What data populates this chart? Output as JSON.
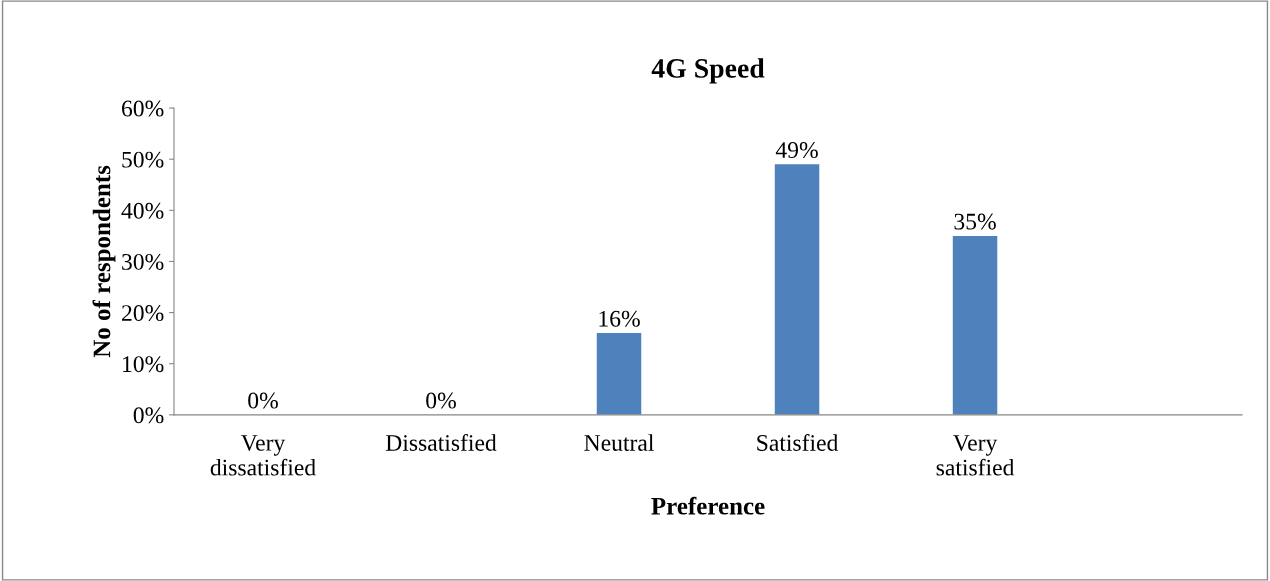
{
  "chart_data": {
    "type": "bar",
    "title": "4G Speed",
    "xlabel": "Preference",
    "ylabel": "No of respondents",
    "categories": [
      "Very\ndissatisfied",
      "Dissatisfied",
      "Neutral",
      "Satisfied",
      "Very\nsatisfied",
      null
    ],
    "values": [
      0,
      0,
      16,
      49,
      35,
      null
    ],
    "value_labels": [
      "0%",
      "0%",
      "16%",
      "49%",
      "35%",
      null
    ],
    "color": "#4f81bd",
    "ylim": [
      0,
      60
    ],
    "yticks": [
      {
        "value": 0,
        "label": "0%"
      },
      {
        "value": 10,
        "label": "10%"
      },
      {
        "value": 20,
        "label": "20%"
      },
      {
        "value": 30,
        "label": "30%"
      },
      {
        "value": 40,
        "label": "40%"
      },
      {
        "value": 50,
        "label": "50%"
      },
      {
        "value": 60,
        "label": "60%"
      }
    ],
    "grid": false,
    "legend": false
  }
}
